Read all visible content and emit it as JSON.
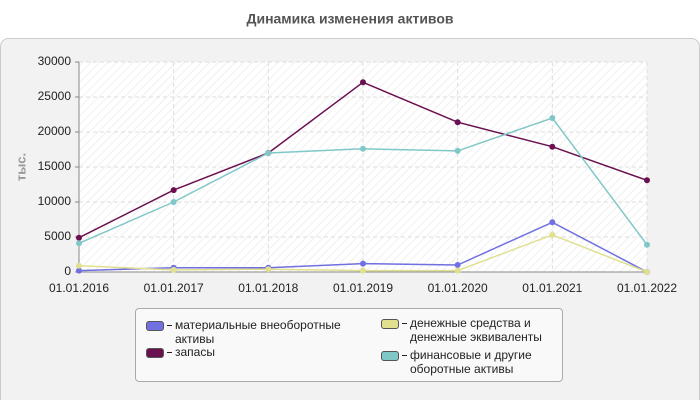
{
  "chart_data": {
    "type": "line",
    "title": "Динамика изменения активов",
    "y_label": "тыс.",
    "categories": [
      "01.01.2016",
      "01.01.2017",
      "01.01.2018",
      "01.01.2019",
      "01.01.2020",
      "01.01.2021",
      "01.01.2022"
    ],
    "series": [
      {
        "name": "материальные внеоборотные активы",
        "color": "#7070e0",
        "values": [
          200,
          600,
          600,
          1200,
          1000,
          7100,
          0
        ]
      },
      {
        "name": "запасы",
        "color": "#6b1050",
        "values": [
          4900,
          11700,
          17000,
          27100,
          21400,
          17900,
          13100
        ]
      },
      {
        "name": "денежные средства и денежные эквиваленты",
        "color": "#e0e090",
        "values": [
          900,
          300,
          400,
          200,
          200,
          5300,
          0
        ]
      },
      {
        "name": "финансовые и другие оборотные активы",
        "color": "#80c8c8",
        "values": [
          4100,
          10000,
          17000,
          17600,
          17300,
          22000,
          3900
        ]
      }
    ],
    "ylim": [
      0,
      30000
    ],
    "yticks": [
      0,
      5000,
      10000,
      15000,
      20000,
      25000,
      30000
    ],
    "grid": true
  }
}
